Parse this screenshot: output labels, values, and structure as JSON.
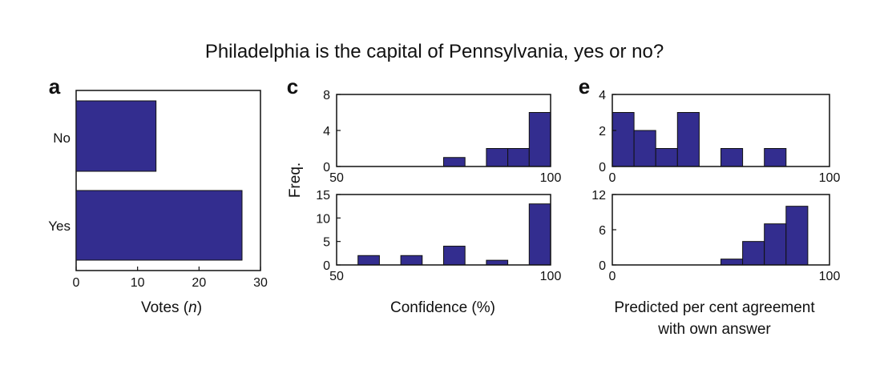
{
  "figure": {
    "title": "Philadelphia is the capital of Pennsylvania, yes or no?",
    "bar_color": "#332d8f",
    "edge_color": "#111111"
  },
  "chart_data": [
    {
      "id": "a",
      "panel_label": "a",
      "type": "bar",
      "orientation": "horizontal",
      "categories": [
        "No",
        "Yes"
      ],
      "values": [
        13,
        27
      ],
      "xlabel": "Votes (n)",
      "xlim": [
        0,
        30
      ],
      "xticks": [
        "0",
        "10",
        "20",
        "30"
      ],
      "grid": false
    },
    {
      "id": "c_top",
      "panel_label": "c",
      "type": "bar",
      "subtype": "histogram",
      "bin_width": 5,
      "x": [
        80,
        90,
        95,
        100
      ],
      "values": [
        1,
        2,
        2,
        6
      ],
      "xlim": [
        50,
        100
      ],
      "xticks": [
        "50",
        "100"
      ],
      "ylim": [
        0,
        8
      ],
      "yticks": [
        "0",
        "4",
        "8"
      ],
      "ylabel": "Freq.",
      "grid": false
    },
    {
      "id": "c_bottom",
      "type": "bar",
      "subtype": "histogram",
      "bin_width": 5,
      "x": [
        60,
        70,
        80,
        90,
        100
      ],
      "values": [
        2,
        2,
        4,
        1,
        13
      ],
      "xlim": [
        50,
        100
      ],
      "xticks": [
        "50",
        "100"
      ],
      "ylim": [
        0,
        15
      ],
      "yticks": [
        "0",
        "5",
        "10",
        "15"
      ],
      "xlabel": "Confidence (%)",
      "grid": false
    },
    {
      "id": "e_top",
      "panel_label": "e",
      "type": "bar",
      "subtype": "histogram",
      "bin_width": 10,
      "x": [
        10,
        20,
        30,
        40,
        60,
        80
      ],
      "values": [
        3,
        2,
        1,
        3,
        1,
        1
      ],
      "xlim": [
        0,
        100
      ],
      "xticks": [
        "0",
        "100"
      ],
      "ylim": [
        0,
        4
      ],
      "yticks": [
        "0",
        "2",
        "4"
      ],
      "grid": false
    },
    {
      "id": "e_bottom",
      "type": "bar",
      "subtype": "histogram",
      "bin_width": 10,
      "x": [
        60,
        70,
        80,
        90
      ],
      "values": [
        1,
        4,
        7,
        10
      ],
      "xlim": [
        0,
        100
      ],
      "xticks": [
        "0",
        "100"
      ],
      "ylim": [
        0,
        12
      ],
      "yticks": [
        "0",
        "6",
        "12"
      ],
      "xlabel": "Predicted per cent agreement with own answer",
      "xlabel_lines": [
        "Predicted per cent agreement",
        "with own answer"
      ],
      "grid": false
    }
  ]
}
